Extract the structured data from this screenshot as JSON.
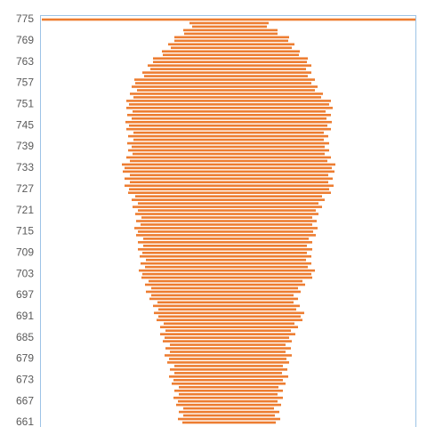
{
  "chart_data": {
    "type": "bar",
    "orientation": "horizontal",
    "stacked": true,
    "categories": [
      775,
      null,
      null,
      null,
      null,
      null,
      769,
      null,
      null,
      null,
      null,
      null,
      763,
      null,
      null,
      null,
      null,
      null,
      757,
      null,
      null,
      null,
      null,
      null,
      751,
      null,
      null,
      null,
      null,
      null,
      745,
      null,
      null,
      null,
      null,
      null,
      739,
      null,
      null,
      null,
      null,
      null,
      733,
      null,
      null,
      null,
      null,
      null,
      727,
      null,
      null,
      null,
      null,
      null,
      721,
      null,
      null,
      null,
      null,
      null,
      715,
      null,
      null,
      null,
      null,
      null,
      709,
      null,
      null,
      null,
      null,
      null,
      703,
      null,
      null,
      null,
      null,
      null,
      697,
      null,
      null,
      null,
      null,
      null,
      691,
      null,
      null,
      null,
      null,
      null,
      685,
      null,
      null,
      null,
      null,
      null,
      679,
      null,
      null,
      null,
      null,
      null,
      673,
      null,
      null,
      null,
      null,
      null,
      667,
      null,
      null,
      null,
      null,
      null,
      661
    ],
    "series": [
      {
        "color": "none",
        "values": [
          2,
          168,
          171,
          161,
          162,
          151,
          151,
          144,
          147,
          137,
          138,
          127,
          127,
          121,
          124,
          115,
          117,
          106,
          107,
          103,
          109,
          101,
          105,
          97,
          100,
          97,
          104,
          98,
          103,
          96,
          100,
          97,
          105,
          99,
          105,
          98,
          103,
          99,
          104,
          97,
          101,
          92,
          95,
          93,
          101,
          95,
          101,
          95,
          100,
          99,
          107,
          103,
          110,
          104,
          110,
          107,
          114,
          108,
          113,
          106,
          110,
          108,
          116,
          110,
          116,
          110,
          115,
          112,
          119,
          113,
          118,
          111,
          115,
          114,
          122,
          118,
          125,
          119,
          125,
          123,
          132,
          127,
          133,
          128,
          133,
          131,
          139,
          135,
          141,
          135,
          140,
          138,
          146,
          141,
          146,
          140,
          145,
          143,
          151,
          146,
          151,
          145,
          150,
          148,
          156,
          151,
          156,
          150,
          155,
          153,
          161,
          156,
          161,
          155,
          160
        ]
      },
      {
        "color": "#ed7d31",
        "values": [
          420,
          89,
          84,
          106,
          105,
          129,
          128,
          142,
          136,
          155,
          153,
          174,
          173,
          184,
          175,
          190,
          184,
          203,
          198,
          209,
          200,
          217,
          211,
          230,
          225,
          232,
          217,
          229,
          219,
          232,
          223,
          230,
          214,
          225,
          214,
          227,
          217,
          226,
          216,
          230,
          222,
          240,
          233,
          238,
          223,
          234,
          223,
          235,
          225,
          228,
          210,
          217,
          203,
          213,
          200,
          206,
          192,
          203,
          193,
          206,
          197,
          202,
          186,
          196,
          184,
          196,
          185,
          193,
          180,
          192,
          183,
          198,
          190,
          192,
          173,
          180,
          165,
          174,
          160,
          167,
          153,
          165,
          155,
          169,
          160,
          164,
          147,
          155,
          141,
          152,
          140,
          145,
          130,
          141,
          130,
          143,
          132,
          137,
          122,
          132,
          121,
          134,
          123,
          128,
          112,
          122,
          111,
          123,
          112,
          118,
          102,
          113,
          103,
          115,
          105
        ]
      }
    ],
    "xlim": [
      0,
      422
    ],
    "frame_color": "#9dc3e6"
  }
}
